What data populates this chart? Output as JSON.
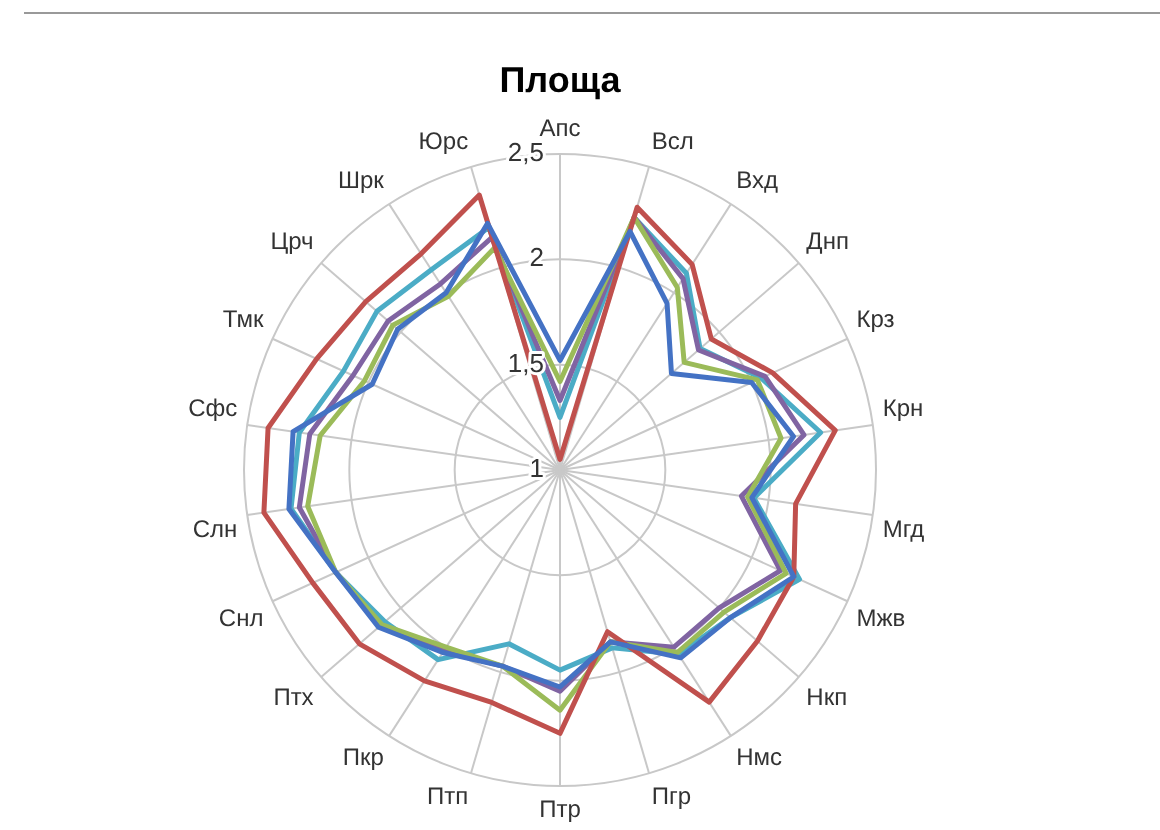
{
  "chart_data": {
    "type": "radar",
    "title": "Площа",
    "categories": [
      "Апс",
      "Всл",
      "Вхд",
      "Днп",
      "Крз",
      "Крн",
      "Мгд",
      "Мжв",
      "Нкп",
      "Нмс",
      "Пгр",
      "Птр",
      "Птп",
      "Пкр",
      "Птх",
      "Снл",
      "Слн",
      "Сфс",
      "Тмк",
      "Црч",
      "Шрк",
      "Юрс"
    ],
    "series": [
      {
        "color": "#4472c4",
        "values": [
          1.52,
          2.18,
          1.94,
          1.7,
          2.0,
          2.12,
          1.92,
          2.22,
          2.07,
          2.06,
          1.85,
          2.03,
          1.97,
          2.03,
          2.14,
          2.17,
          2.3,
          2.28,
          1.98,
          2.02,
          2.0,
          2.22
        ]
      },
      {
        "color": "#c0504d",
        "values": [
          1.05,
          2.3,
          2.16,
          1.95,
          2.11,
          2.32,
          2.13,
          2.22,
          2.24,
          2.31,
          1.8,
          2.25,
          2.15,
          2.19,
          2.26,
          2.29,
          2.42,
          2.4,
          2.27,
          2.22,
          2.22,
          2.36
        ]
      },
      {
        "color": "#9bbb59",
        "values": [
          1.42,
          2.25,
          2.03,
          1.78,
          2.03,
          2.06,
          1.9,
          2.18,
          2.03,
          2.03,
          1.85,
          2.14,
          1.97,
          2.0,
          2.12,
          2.17,
          2.21,
          2.15,
          2.02,
          2.05,
          1.98,
          2.1
        ]
      },
      {
        "color": "#8064a2",
        "values": [
          1.33,
          2.25,
          2.08,
          1.87,
          2.07,
          2.17,
          1.87,
          2.15,
          2.0,
          2.0,
          1.85,
          2.05,
          1.97,
          2.02,
          2.13,
          2.17,
          2.25,
          2.2,
          2.08,
          2.08,
          2.05,
          2.15
        ]
      },
      {
        "color": "#4bacc6",
        "values": [
          1.25,
          2.25,
          2.11,
          1.88,
          2.05,
          2.25,
          1.93,
          2.25,
          2.07,
          2.04,
          1.88,
          1.95,
          1.86,
          2.07,
          2.1,
          2.17,
          2.29,
          2.25,
          2.13,
          2.15,
          2.13,
          2.2
        ]
      }
    ],
    "ylim": [
      1,
      2.5
    ],
    "yticks": [
      1,
      {
        "value": 1.5,
        "label": "1,5"
      },
      2,
      {
        "value": 2.5,
        "label": "2,5"
      }
    ],
    "grid": true,
    "legend": false,
    "marker": "none",
    "line_style": "solid"
  }
}
